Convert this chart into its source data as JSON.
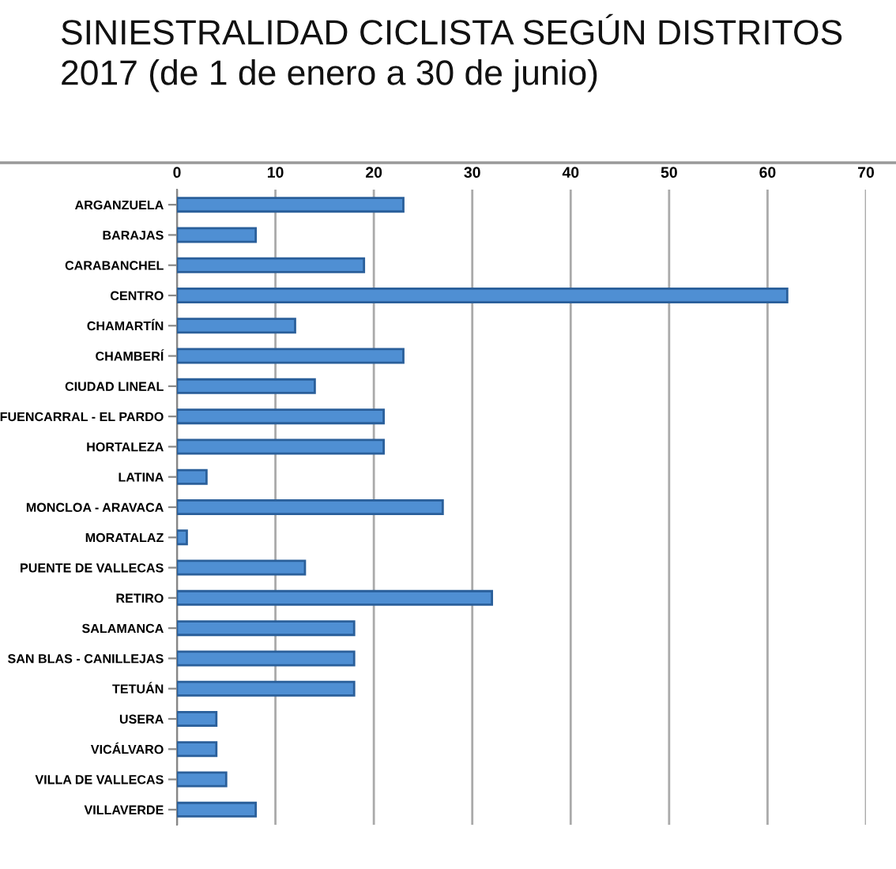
{
  "chart_data": {
    "type": "bar",
    "orientation": "horizontal",
    "title": "SINIESTRALIDAD CICLISTA SEGÚN DISTRITOS\n2017 (de 1 de enero a 30 de junio)",
    "categories": [
      "ARGANZUELA",
      "BARAJAS",
      "CARABANCHEL",
      "CENTRO",
      "CHAMARTÍN",
      "CHAMBERÍ",
      "CIUDAD LINEAL",
      "FUENCARRAL - EL PARDO",
      "HORTALEZA",
      "LATINA",
      "MONCLOA - ARAVACA",
      "MORATALAZ",
      "PUENTE DE VALLECAS",
      "RETIRO",
      "SALAMANCA",
      "SAN BLAS - CANILLEJAS",
      "TETUÁN",
      "USERA",
      "VICÁLVARO",
      "VILLA DE VALLECAS",
      "VILLAVERDE"
    ],
    "values": [
      23,
      8,
      19,
      62,
      12,
      23,
      14,
      21,
      21,
      3,
      27,
      1,
      13,
      32,
      18,
      18,
      18,
      4,
      4,
      5,
      8
    ],
    "color": "#4f8fd3",
    "xlim": [
      0,
      70
    ],
    "xticks": [
      0,
      10,
      20,
      30,
      40,
      50,
      60,
      70
    ],
    "grid": "x"
  }
}
